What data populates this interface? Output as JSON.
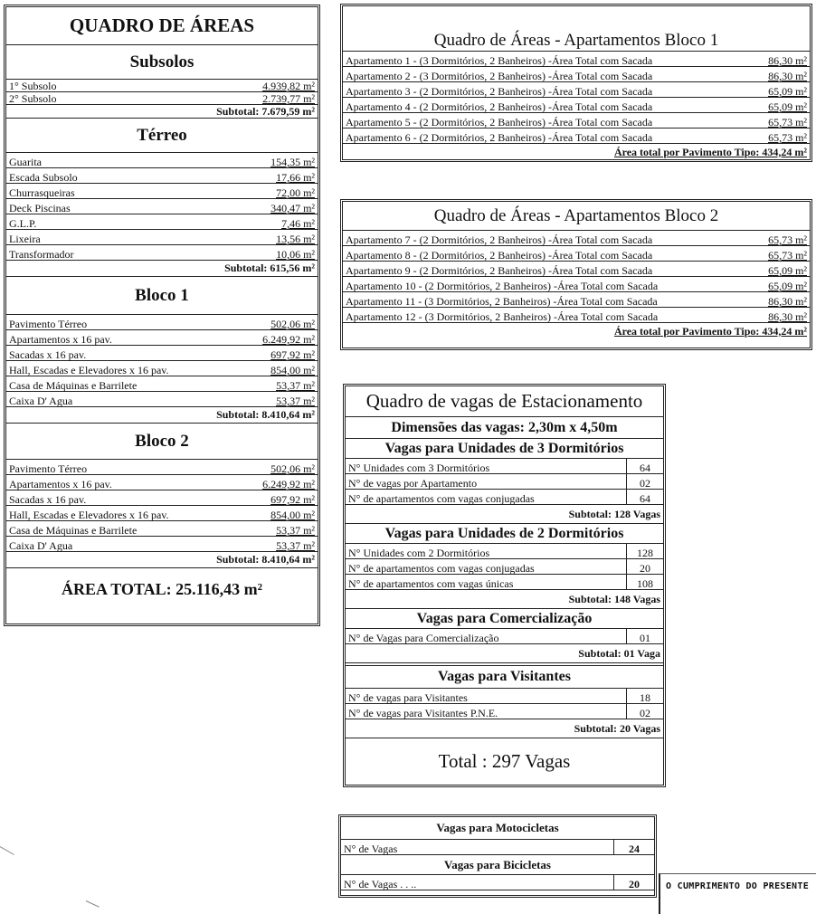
{
  "areas": {
    "title": "QUADRO DE ÁREAS",
    "sections": [
      {
        "heading": "Subsolos",
        "rows": [
          [
            "1° Subsolo",
            "4.939,82 m²"
          ],
          [
            "2° Subsolo",
            "2.739,77 m²"
          ]
        ],
        "subtotal": "Subtotal:  7.679,59 m²"
      },
      {
        "heading": "Térreo",
        "rows": [
          [
            "Guarita",
            "154,35 m²"
          ],
          [
            "Escada Subsolo",
            "17,66 m²"
          ],
          [
            "Churrasqueiras",
            "72,00 m²"
          ],
          [
            "Deck Piscinas",
            "340,47 m²"
          ],
          [
            "G.L.P.",
            "7,46 m²"
          ],
          [
            "Lixeira",
            "13,56 m²"
          ],
          [
            "Transformador",
            "10,06 m²"
          ]
        ],
        "subtotal": "Subtotal:  615,56 m²"
      },
      {
        "heading": "Bloco 1",
        "rows": [
          [
            "Pavimento Térreo",
            "502,06 m²"
          ],
          [
            "Apartamentos  x 16 pav.",
            "6.249,92 m²"
          ],
          [
            "Sacadas  x 16 pav.",
            "697,92 m²"
          ],
          [
            "Hall, Escadas e Elevadores x 16 pav.",
            "854,00 m²"
          ],
          [
            "Casa de Máquinas e Barrilete",
            "53,37 m²"
          ],
          [
            "Caixa D' Agua",
            "53,37 m²"
          ]
        ],
        "subtotal": "Subtotal:  8.410,64 m²"
      },
      {
        "heading": "Bloco 2",
        "rows": [
          [
            "Pavimento Térreo",
            "502,06 m²"
          ],
          [
            "Apartamentos  x 16 pav.",
            "6.249,92 m²"
          ],
          [
            "Sacadas  x 16 pav.",
            "697,92 m²"
          ],
          [
            "Hall, Escadas e Elevadores x 16 pav.",
            "854,00 m²"
          ],
          [
            "Casa de Máquinas e Barrilete",
            "53,37 m²"
          ],
          [
            "Caixa D' Agua",
            "53,37 m²"
          ]
        ],
        "subtotal": "Subtotal:  8.410,64 m²"
      }
    ],
    "total": "ÁREA TOTAL:  25.116,43 m²"
  },
  "bloco1": {
    "title": "Quadro de Áreas - Apartamentos Bloco 1",
    "rows": [
      [
        "Apartamento 1 - (3 Dormitórios, 2 Banheiros) -Área Total com Sacada",
        "86,30 m²"
      ],
      [
        "Apartamento 2 - (3 Dormitórios, 2 Banheiros) -Área Total com Sacada",
        "86,30 m²"
      ],
      [
        "Apartamento 3 - (2 Dormitórios, 2 Banheiros) -Área Total com Sacada",
        "65,09 m²"
      ],
      [
        "Apartamento 4 - (2 Dormitórios, 2 Banheiros) -Área Total com Sacada",
        "65,09 m²"
      ],
      [
        "Apartamento 5 - (2 Dormitórios, 2 Banheiros) -Área Total com Sacada",
        "65,73 m²"
      ],
      [
        "Apartamento 6 - (2 Dormitórios, 2 Banheiros) -Área Total com Sacada",
        "65,73 m²"
      ]
    ],
    "total": "Área total por Pavimento Tipo:  434,24 m²"
  },
  "bloco2": {
    "title": "Quadro de Áreas - Apartamentos Bloco 2",
    "rows": [
      [
        "Apartamento 7 - (2 Dormitórios, 2 Banheiros) -Área Total com Sacada",
        "65,73 m²"
      ],
      [
        "Apartamento 8 - (2 Dormitórios, 2 Banheiros) -Área Total com Sacada",
        "65,73 m²"
      ],
      [
        "Apartamento 9 - (2 Dormitórios, 2 Banheiros) -Área Total com Sacada",
        "65,09 m²"
      ],
      [
        "Apartamento 10 - (2 Dormitórios, 2 Banheiros) -Área Total com Sacada",
        "65,09 m²"
      ],
      [
        "Apartamento 11 - (3 Dormitórios, 2 Banheiros) -Área Total com Sacada",
        "86,30 m²"
      ],
      [
        "Apartamento 12 - (3 Dormitórios, 2 Banheiros) -Área Total com Sacada",
        "86,30 m²"
      ]
    ],
    "total": "Área total por Pavimento Tipo:  434,24 m²"
  },
  "vagas": {
    "title": "Quadro de vagas de Estacionamento",
    "dimensions": "Dimensões das vagas: 2,30m x 4,50m",
    "sections": [
      {
        "heading": "Vagas para Unidades de  3 Dormitórios",
        "rows": [
          [
            "N°  Unidades com 3 Dormitórios",
            "64"
          ],
          [
            "N° de vagas por Apartamento",
            "02"
          ],
          [
            "N° de apartamentos com vagas conjugadas",
            "64"
          ]
        ],
        "subtotal": "Subtotal:  128 Vagas"
      },
      {
        "heading": "Vagas para Unidades de  2 Dormitórios",
        "rows": [
          [
            "N°  Unidades com 2 Dormitórios",
            "128"
          ],
          [
            "N° de apartamentos com vagas conjugadas",
            "20"
          ],
          [
            "N° de apartamentos com vagas únicas",
            "108"
          ]
        ],
        "subtotal": "Subtotal:  148 Vagas"
      },
      {
        "heading": "Vagas para Comercialização",
        "rows": [
          [
            "N° de Vagas para Comercialização",
            "01"
          ]
        ],
        "subtotal": "Subtotal:  01 Vaga"
      },
      {
        "heading": "Vagas para Visitantes",
        "rows": [
          [
            "N°  de vagas para Visitantes",
            "18"
          ],
          [
            "N°  de vagas para Visitantes P.N.E.",
            "02"
          ]
        ],
        "subtotal": "Subtotal:  20 Vagas"
      }
    ],
    "total": "Total : 297 Vagas"
  },
  "outras": {
    "sections": [
      {
        "heading": "Vagas para Motocicletas",
        "rows": [
          [
            "N°  de Vagas",
            "24"
          ]
        ]
      },
      {
        "heading": "Vagas para Bicicletas",
        "rows": [
          [
            "N°  de Vagas . . ..",
            "20"
          ]
        ]
      }
    ]
  },
  "stamp": "O CUMPRIMENTO DO PRESENTE"
}
